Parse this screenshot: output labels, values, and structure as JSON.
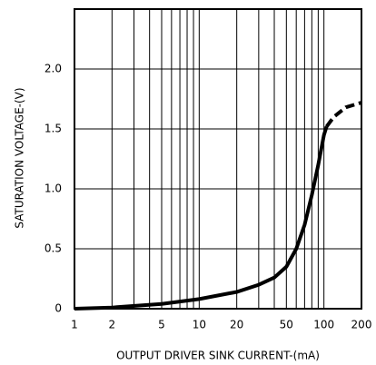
{
  "chart_data": {
    "type": "line",
    "xlabel": "OUTPUT DRIVER SINK CURRENT-(mA)",
    "ylabel": "SATURATION VOLTAGE-(V)",
    "xscale": "log",
    "xlim": [
      1,
      200
    ],
    "ylim": [
      0,
      2.5
    ],
    "xticks": [
      1,
      2,
      5,
      10,
      20,
      50,
      100,
      200
    ],
    "yticks": [
      0,
      {
        "value": 0.5,
        "label": "0.5"
      },
      {
        "value": 1,
        "label": "1.0"
      },
      {
        "value": 1.5,
        "label": "1.5"
      },
      {
        "value": 2,
        "label": "2.0"
      }
    ],
    "xgrid": [
      2,
      3,
      4,
      5,
      6,
      7,
      8,
      9,
      10,
      20,
      30,
      40,
      50,
      60,
      70,
      80,
      90,
      100
    ],
    "grid": true,
    "series": [
      {
        "color": "#000000",
        "style": "solid",
        "x": [
          1,
          2,
          5,
          10,
          20,
          30,
          40,
          50,
          60,
          70,
          80,
          90,
          100,
          105
        ],
        "values": [
          0,
          0.01,
          0.04,
          0.08,
          0.14,
          0.2,
          0.26,
          0.35,
          0.5,
          0.7,
          0.95,
          1.2,
          1.45,
          1.52
        ]
      },
      {
        "color": "#000000",
        "style": "dashed",
        "x": [
          105,
          120,
          150,
          200
        ],
        "values": [
          1.52,
          1.6,
          1.68,
          1.72
        ]
      }
    ]
  }
}
